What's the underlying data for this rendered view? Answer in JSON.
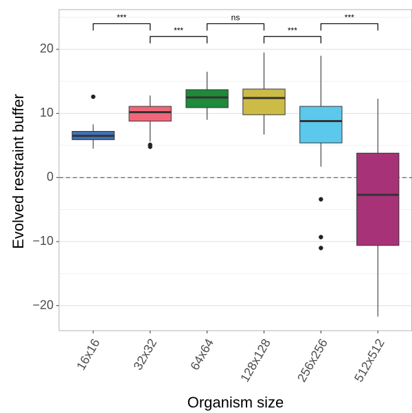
{
  "chart_data": {
    "type": "box",
    "x_label": "Organism size",
    "y_label": "Evolved restraint buffer",
    "categories": [
      "16x16",
      "32x32",
      "64x64",
      "128x128",
      "256x256",
      "512x512"
    ],
    "colors": [
      "#4072b5",
      "#f0677a",
      "#1e8a3a",
      "#cdbb48",
      "#5cc8ec",
      "#a83278"
    ],
    "boxes": [
      {
        "low": 4.5,
        "q1": 5.9,
        "median": 6.5,
        "q3": 7.2,
        "high": 8.3,
        "outliers": [
          12.6
        ]
      },
      {
        "low": 5.6,
        "q1": 8.8,
        "median": 10.2,
        "q3": 11.1,
        "high": 12.8,
        "outliers": [
          5.1,
          4.8
        ]
      },
      {
        "low": 9.0,
        "q1": 10.9,
        "median": 12.5,
        "q3": 13.7,
        "high": 16.5,
        "outliers": []
      },
      {
        "low": 6.7,
        "q1": 9.8,
        "median": 12.4,
        "q3": 13.8,
        "high": 19.5,
        "outliers": []
      },
      {
        "low": 1.7,
        "q1": 5.4,
        "median": 8.8,
        "q3": 11.1,
        "high": 19.0,
        "outliers": [
          -3.4,
          -9.3,
          -11.0
        ]
      },
      {
        "low": -21.7,
        "q1": -10.6,
        "median": -2.7,
        "q3": 3.8,
        "high": 12.3,
        "outliers": []
      }
    ],
    "comparisons": [
      {
        "groups": [
          0,
          1
        ],
        "label": "***",
        "y": 24.0
      },
      {
        "groups": [
          1,
          2
        ],
        "label": "***",
        "y": 22.0
      },
      {
        "groups": [
          2,
          3
        ],
        "label": "ns",
        "y": 24.0
      },
      {
        "groups": [
          3,
          4
        ],
        "label": "***",
        "y": 22.0
      },
      {
        "groups": [
          4,
          5
        ],
        "label": "***",
        "y": 24.0
      }
    ],
    "ylim": [
      -23.9,
      26.2
    ],
    "yticks": [
      {
        "value": -20,
        "label": "−20"
      },
      {
        "value": -10,
        "label": "−10"
      },
      0,
      10,
      20
    ],
    "minor_yticks": [
      -15,
      -5,
      5,
      15,
      25
    ],
    "hline": 0,
    "grid": true
  }
}
